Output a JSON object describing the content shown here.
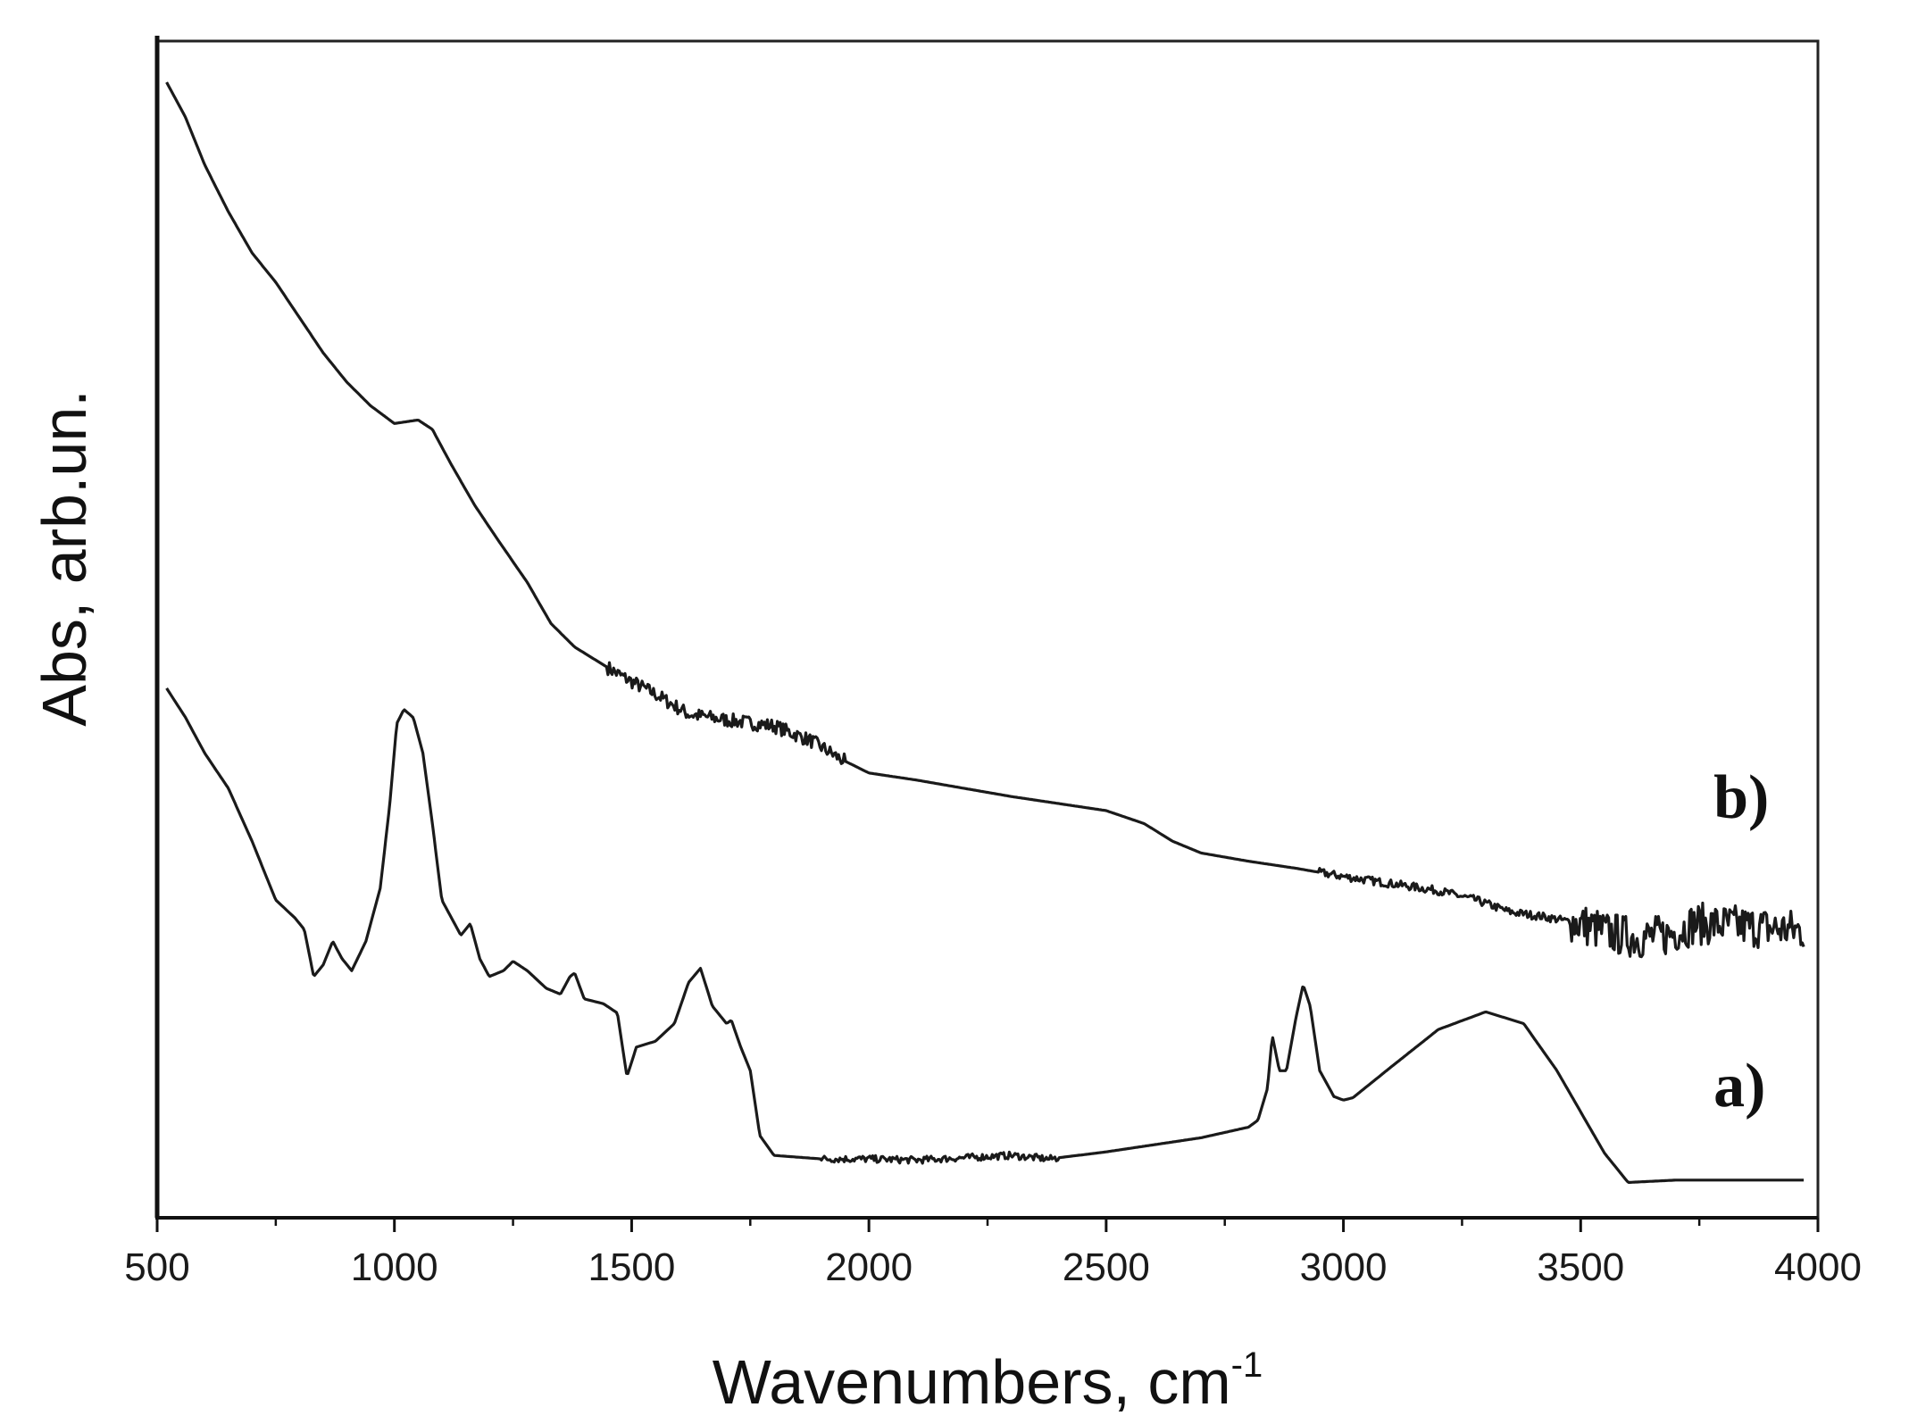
{
  "chart_data": {
    "type": "line",
    "xlabel": "Wavenumbers, cm",
    "xlabel_superscript": "-1",
    "ylabel": "Abs, arb.un.",
    "xlim": [
      500,
      4000
    ],
    "ylim": [
      0,
      100
    ],
    "xticks": [
      500,
      1000,
      1500,
      2000,
      2500,
      3000,
      3500,
      4000
    ],
    "grid": false,
    "legend": "none",
    "series": [
      {
        "name": "b)",
        "label_anchor": [
          3780,
          34
        ],
        "color": "#1a1a1a",
        "noise": [
          {
            "from": 1450,
            "to": 1950,
            "amp": 0.6
          },
          {
            "from": 2950,
            "to": 3480,
            "amp": 0.35
          },
          {
            "from": 3480,
            "to": 3980,
            "amp": 1.8
          }
        ],
        "points": [
          [
            520,
            96.5
          ],
          [
            560,
            93.5
          ],
          [
            600,
            89.5
          ],
          [
            650,
            85.5
          ],
          [
            700,
            82.0
          ],
          [
            750,
            79.5
          ],
          [
            800,
            76.5
          ],
          [
            850,
            73.5
          ],
          [
            900,
            71.0
          ],
          [
            950,
            69.0
          ],
          [
            1000,
            67.5
          ],
          [
            1050,
            67.8
          ],
          [
            1080,
            67.0
          ],
          [
            1120,
            64.0
          ],
          [
            1170,
            60.5
          ],
          [
            1220,
            57.5
          ],
          [
            1280,
            54.0
          ],
          [
            1330,
            50.5
          ],
          [
            1380,
            48.5
          ],
          [
            1420,
            47.5
          ],
          [
            1480,
            46.0
          ],
          [
            1550,
            44.5
          ],
          [
            1620,
            42.8
          ],
          [
            1700,
            42.3
          ],
          [
            1800,
            41.8
          ],
          [
            1880,
            40.5
          ],
          [
            1940,
            39.0
          ],
          [
            2000,
            37.8
          ],
          [
            2100,
            37.2
          ],
          [
            2200,
            36.5
          ],
          [
            2300,
            35.8
          ],
          [
            2400,
            35.2
          ],
          [
            2500,
            34.6
          ],
          [
            2580,
            33.5
          ],
          [
            2640,
            32.0
          ],
          [
            2700,
            31.0
          ],
          [
            2800,
            30.3
          ],
          [
            2900,
            29.7
          ],
          [
            3000,
            29.0
          ],
          [
            3100,
            28.4
          ],
          [
            3200,
            27.8
          ],
          [
            3280,
            27.0
          ],
          [
            3350,
            26.0
          ],
          [
            3420,
            25.6
          ],
          [
            3500,
            25.0
          ],
          [
            3560,
            24.2
          ],
          [
            3620,
            23.8
          ],
          [
            3680,
            24.0
          ],
          [
            3740,
            25.0
          ],
          [
            3800,
            24.9
          ],
          [
            3900,
            24.6
          ],
          [
            3970,
            24.4
          ]
        ]
      },
      {
        "name": "a)",
        "label_anchor": [
          3780,
          9.5
        ],
        "color": "#1a1a1a",
        "noise": [
          {
            "from": 1900,
            "to": 2400,
            "amp": 0.3
          }
        ],
        "points": [
          [
            520,
            45.0
          ],
          [
            560,
            42.5
          ],
          [
            600,
            39.5
          ],
          [
            650,
            36.5
          ],
          [
            700,
            32.0
          ],
          [
            750,
            27.0
          ],
          [
            790,
            25.5
          ],
          [
            810,
            24.5
          ],
          [
            830,
            20.5
          ],
          [
            850,
            21.5
          ],
          [
            870,
            23.5
          ],
          [
            890,
            22.0
          ],
          [
            910,
            21.0
          ],
          [
            940,
            23.5
          ],
          [
            970,
            28.0
          ],
          [
            990,
            35.0
          ],
          [
            1005,
            42.0
          ],
          [
            1020,
            43.2
          ],
          [
            1040,
            42.5
          ],
          [
            1060,
            39.5
          ],
          [
            1080,
            33.5
          ],
          [
            1100,
            27.0
          ],
          [
            1120,
            25.5
          ],
          [
            1140,
            24.0
          ],
          [
            1160,
            25.0
          ],
          [
            1180,
            22.0
          ],
          [
            1200,
            20.5
          ],
          [
            1230,
            21.0
          ],
          [
            1250,
            21.8
          ],
          [
            1280,
            21.0
          ],
          [
            1320,
            19.5
          ],
          [
            1350,
            19.0
          ],
          [
            1370,
            20.5
          ],
          [
            1380,
            20.8
          ],
          [
            1400,
            18.6
          ],
          [
            1440,
            18.2
          ],
          [
            1470,
            17.4
          ],
          [
            1490,
            12.0
          ],
          [
            1510,
            14.5
          ],
          [
            1550,
            15.0
          ],
          [
            1590,
            16.5
          ],
          [
            1620,
            20.0
          ],
          [
            1645,
            21.2
          ],
          [
            1670,
            18.0
          ],
          [
            1700,
            16.5
          ],
          [
            1710,
            16.8
          ],
          [
            1730,
            14.5
          ],
          [
            1750,
            12.5
          ],
          [
            1770,
            7.0
          ],
          [
            1800,
            5.3
          ],
          [
            1900,
            5.0
          ],
          [
            2000,
            5.0
          ],
          [
            2100,
            4.9
          ],
          [
            2200,
            5.1
          ],
          [
            2300,
            5.3
          ],
          [
            2380,
            5.0
          ],
          [
            2500,
            5.6
          ],
          [
            2600,
            6.2
          ],
          [
            2700,
            6.8
          ],
          [
            2800,
            7.7
          ],
          [
            2820,
            8.3
          ],
          [
            2840,
            11.0
          ],
          [
            2850,
            15.5
          ],
          [
            2865,
            12.5
          ],
          [
            2880,
            12.5
          ],
          [
            2900,
            17.0
          ],
          [
            2915,
            19.8
          ],
          [
            2930,
            18.0
          ],
          [
            2950,
            12.5
          ],
          [
            2980,
            10.3
          ],
          [
            3000,
            10.0
          ],
          [
            3020,
            10.2
          ],
          [
            3100,
            12.8
          ],
          [
            3200,
            16.0
          ],
          [
            3300,
            17.5
          ],
          [
            3380,
            16.5
          ],
          [
            3450,
            12.5
          ],
          [
            3500,
            9.0
          ],
          [
            3550,
            5.5
          ],
          [
            3600,
            3.0
          ],
          [
            3700,
            3.2
          ],
          [
            3800,
            3.2
          ],
          [
            3970,
            3.2
          ]
        ]
      }
    ]
  }
}
